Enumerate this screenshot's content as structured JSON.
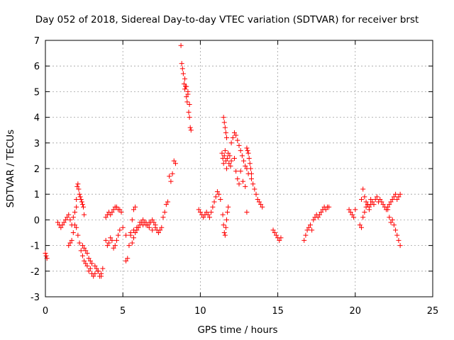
{
  "chart_data": {
    "type": "scatter",
    "title": "Day 052 of 2018, Sidereal Day-to-day VTEC variation (SDTVAR) for receiver brst",
    "xlabel": "GPS time / hours",
    "ylabel": "SDTVAR / TECUs",
    "xlim": [
      0,
      25
    ],
    "ylim": [
      -3,
      7
    ],
    "xticks": [
      "0",
      "5",
      "10",
      "15",
      "20",
      "25"
    ],
    "yticks": [
      "-3",
      "-2",
      "-1",
      "0",
      "1",
      "2",
      "3",
      "4",
      "5",
      "6",
      "7"
    ],
    "grid": true,
    "marker": "+",
    "color": "#ff0000",
    "series": [
      {
        "name": "SDTVAR",
        "x": [
          0.0,
          0.05,
          0.1,
          0.8,
          0.9,
          1.0,
          1.1,
          1.2,
          1.3,
          1.4,
          1.5,
          1.6,
          1.7,
          1.8,
          1.9,
          2.0,
          1.5,
          1.6,
          1.7,
          1.8,
          1.9,
          2.0,
          2.05,
          2.1,
          2.15,
          2.2,
          2.25,
          2.3,
          2.35,
          2.4,
          2.45,
          2.5,
          2.0,
          2.1,
          2.2,
          2.3,
          2.4,
          2.5,
          2.6,
          2.7,
          2.8,
          2.9,
          3.0,
          3.1,
          3.2,
          3.3,
          3.4,
          3.5,
          3.6,
          3.7,
          2.4,
          2.5,
          2.6,
          2.7,
          2.8,
          2.9,
          3.0,
          3.2,
          3.4,
          3.6,
          3.9,
          4.0,
          4.1,
          4.2,
          4.3,
          4.4,
          4.5,
          4.6,
          4.7,
          4.8,
          4.9,
          3.9,
          4.0,
          4.1,
          4.2,
          4.3,
          4.4,
          4.5,
          4.6,
          4.7,
          4.8,
          5.0,
          5.2,
          5.2,
          5.3,
          5.4,
          5.5,
          5.6,
          5.7,
          5.8,
          5.6,
          5.7,
          5.8,
          5.9,
          6.0,
          6.1,
          6.2,
          6.3,
          6.4,
          6.5,
          6.6,
          6.7,
          6.8,
          6.9,
          7.0,
          7.1,
          7.2,
          7.3,
          7.4,
          7.5,
          7.6,
          7.7,
          7.8,
          7.9,
          5.5,
          5.7,
          5.9,
          6.1,
          6.3,
          6.5,
          6.7,
          6.9,
          7.1,
          8.0,
          8.1,
          8.2,
          8.3,
          8.4,
          8.75,
          8.8,
          8.85,
          8.9,
          8.95,
          9.0,
          9.05,
          9.1,
          9.15,
          9.2,
          9.25,
          9.3,
          9.35,
          9.4,
          9.0,
          9.1,
          9.2,
          9.3,
          9.9,
          10.0,
          10.1,
          10.2,
          10.3,
          10.4,
          10.5,
          10.6,
          10.7,
          10.8,
          10.9,
          11.0,
          11.1,
          11.2,
          11.3,
          11.4,
          11.45,
          11.5,
          11.55,
          11.6,
          11.65,
          11.7,
          11.75,
          11.8,
          11.85,
          11.9,
          11.95,
          12.0,
          11.5,
          11.55,
          11.6,
          11.65,
          11.7,
          11.45,
          11.5,
          11.55,
          11.6,
          11.65,
          11.7,
          11.75,
          11.8,
          12.0,
          12.1,
          12.2,
          12.3,
          12.4,
          12.5,
          12.6,
          12.7,
          12.8,
          12.9,
          13.0,
          13.1,
          12.2,
          12.3,
          12.4,
          12.5,
          12.6,
          12.75,
          12.9,
          13.0,
          13.0,
          13.05,
          13.1,
          13.15,
          13.2,
          13.25,
          13.3,
          13.3,
          13.4,
          13.5,
          13.6,
          13.7,
          13.8,
          13.9,
          14.0,
          14.7,
          14.8,
          14.9,
          15.0,
          15.1,
          15.2,
          16.7,
          16.8,
          16.9,
          17.0,
          17.1,
          17.2,
          17.3,
          17.4,
          17.5,
          17.6,
          17.7,
          17.8,
          17.9,
          18.0,
          18.1,
          18.2,
          18.3,
          19.6,
          19.7,
          19.8,
          19.9,
          20.0,
          20.3,
          20.4,
          20.5,
          20.6,
          20.7,
          20.8,
          20.9,
          21.0,
          21.1,
          21.2,
          21.3,
          21.4,
          21.5,
          21.6,
          21.7,
          21.8,
          21.9,
          22.0,
          22.1,
          22.2,
          22.3,
          22.4,
          22.5,
          22.6,
          22.7,
          22.8,
          22.9,
          20.4,
          20.5,
          20.6,
          20.7,
          20.8,
          20.9,
          21.0,
          22.1,
          22.2,
          22.3,
          22.4,
          22.5,
          22.6,
          22.7,
          22.8,
          22.9
        ],
        "y": [
          -1.3,
          -1.4,
          -1.5,
          -0.1,
          -0.2,
          -0.3,
          -0.2,
          -0.1,
          0.0,
          0.1,
          0.2,
          0.0,
          -0.2,
          0.1,
          0.3,
          0.8,
          -1.0,
          -0.9,
          -0.8,
          -0.5,
          -0.2,
          0.5,
          1.3,
          1.4,
          1.2,
          1.0,
          0.9,
          0.8,
          0.7,
          0.6,
          0.5,
          0.2,
          -0.3,
          -0.6,
          -0.9,
          -1.2,
          -1.4,
          -1.6,
          -1.7,
          -1.8,
          -2.0,
          -1.9,
          -2.1,
          -2.2,
          -2.1,
          -1.9,
          -2.0,
          -2.2,
          -2.1,
          -1.9,
          -1.0,
          -1.1,
          -1.2,
          -1.3,
          -1.5,
          -1.6,
          -1.7,
          -1.8,
          -2.0,
          -2.2,
          0.1,
          0.2,
          0.3,
          0.2,
          0.3,
          0.4,
          0.5,
          0.5,
          0.4,
          0.4,
          0.3,
          -0.8,
          -1.0,
          -0.9,
          -0.7,
          -0.8,
          -1.1,
          -1.0,
          -0.8,
          -0.6,
          -0.4,
          -0.3,
          -0.6,
          -1.6,
          -1.5,
          -1.0,
          -0.5,
          0.0,
          0.4,
          0.5,
          -0.9,
          -0.7,
          -0.5,
          -0.4,
          -0.3,
          -0.2,
          -0.1,
          0.0,
          -0.1,
          -0.2,
          -0.2,
          -0.1,
          -0.1,
          0.0,
          -0.1,
          -0.2,
          -0.4,
          -0.5,
          -0.4,
          -0.3,
          0.1,
          0.3,
          0.6,
          0.7,
          -0.6,
          -0.4,
          -0.3,
          -0.1,
          -0.2,
          -0.1,
          -0.3,
          -0.4,
          -0.3,
          1.7,
          1.5,
          1.8,
          2.3,
          2.2,
          6.8,
          6.1,
          5.9,
          5.7,
          5.3,
          5.1,
          5.2,
          4.8,
          4.6,
          5.0,
          4.2,
          4.0,
          3.6,
          3.5,
          5.5,
          5.2,
          4.9,
          4.5,
          0.4,
          0.3,
          0.2,
          0.1,
          0.2,
          0.3,
          0.2,
          0.1,
          0.3,
          0.5,
          0.7,
          0.9,
          1.1,
          1.0,
          0.8,
          2.6,
          2.4,
          2.2,
          2.5,
          2.7,
          2.3,
          2.0,
          2.4,
          2.6,
          2.2,
          2.5,
          2.1,
          2.3,
          4.0,
          3.8,
          3.6,
          3.4,
          3.2,
          0.2,
          -0.2,
          -0.5,
          -0.6,
          -0.3,
          0.0,
          0.3,
          0.5,
          3.0,
          3.2,
          3.4,
          3.3,
          3.1,
          2.9,
          2.7,
          2.5,
          2.3,
          2.1,
          2.0,
          1.8,
          2.4,
          1.9,
          1.6,
          1.4,
          1.9,
          1.5,
          1.3,
          0.3,
          2.8,
          2.7,
          2.6,
          2.4,
          2.2,
          2.0,
          1.8,
          1.6,
          1.4,
          1.2,
          1.0,
          0.8,
          0.7,
          0.6,
          0.5,
          -0.4,
          -0.5,
          -0.6,
          -0.7,
          -0.8,
          -0.7,
          -0.8,
          -0.6,
          -0.4,
          -0.3,
          -0.2,
          -0.4,
          0.0,
          0.1,
          0.2,
          0.1,
          0.2,
          0.3,
          0.4,
          0.5,
          0.4,
          0.5,
          0.5,
          0.4,
          0.3,
          0.2,
          0.1,
          0.4,
          -0.2,
          0.8,
          1.2,
          0.9,
          0.7,
          0.6,
          0.5,
          0.8,
          0.7,
          0.6,
          0.8,
          0.9,
          0.7,
          0.8,
          0.7,
          0.6,
          0.5,
          0.4,
          0.5,
          0.6,
          0.7,
          0.8,
          0.9,
          1.0,
          0.8,
          0.9,
          1.0,
          -0.3,
          0.1,
          0.3,
          0.5,
          0.6,
          0.4,
          0.6,
          0.4,
          0.1,
          -0.1,
          0.0,
          -0.2,
          -0.4,
          -0.6,
          -0.8,
          -1.0
        ]
      }
    ]
  }
}
